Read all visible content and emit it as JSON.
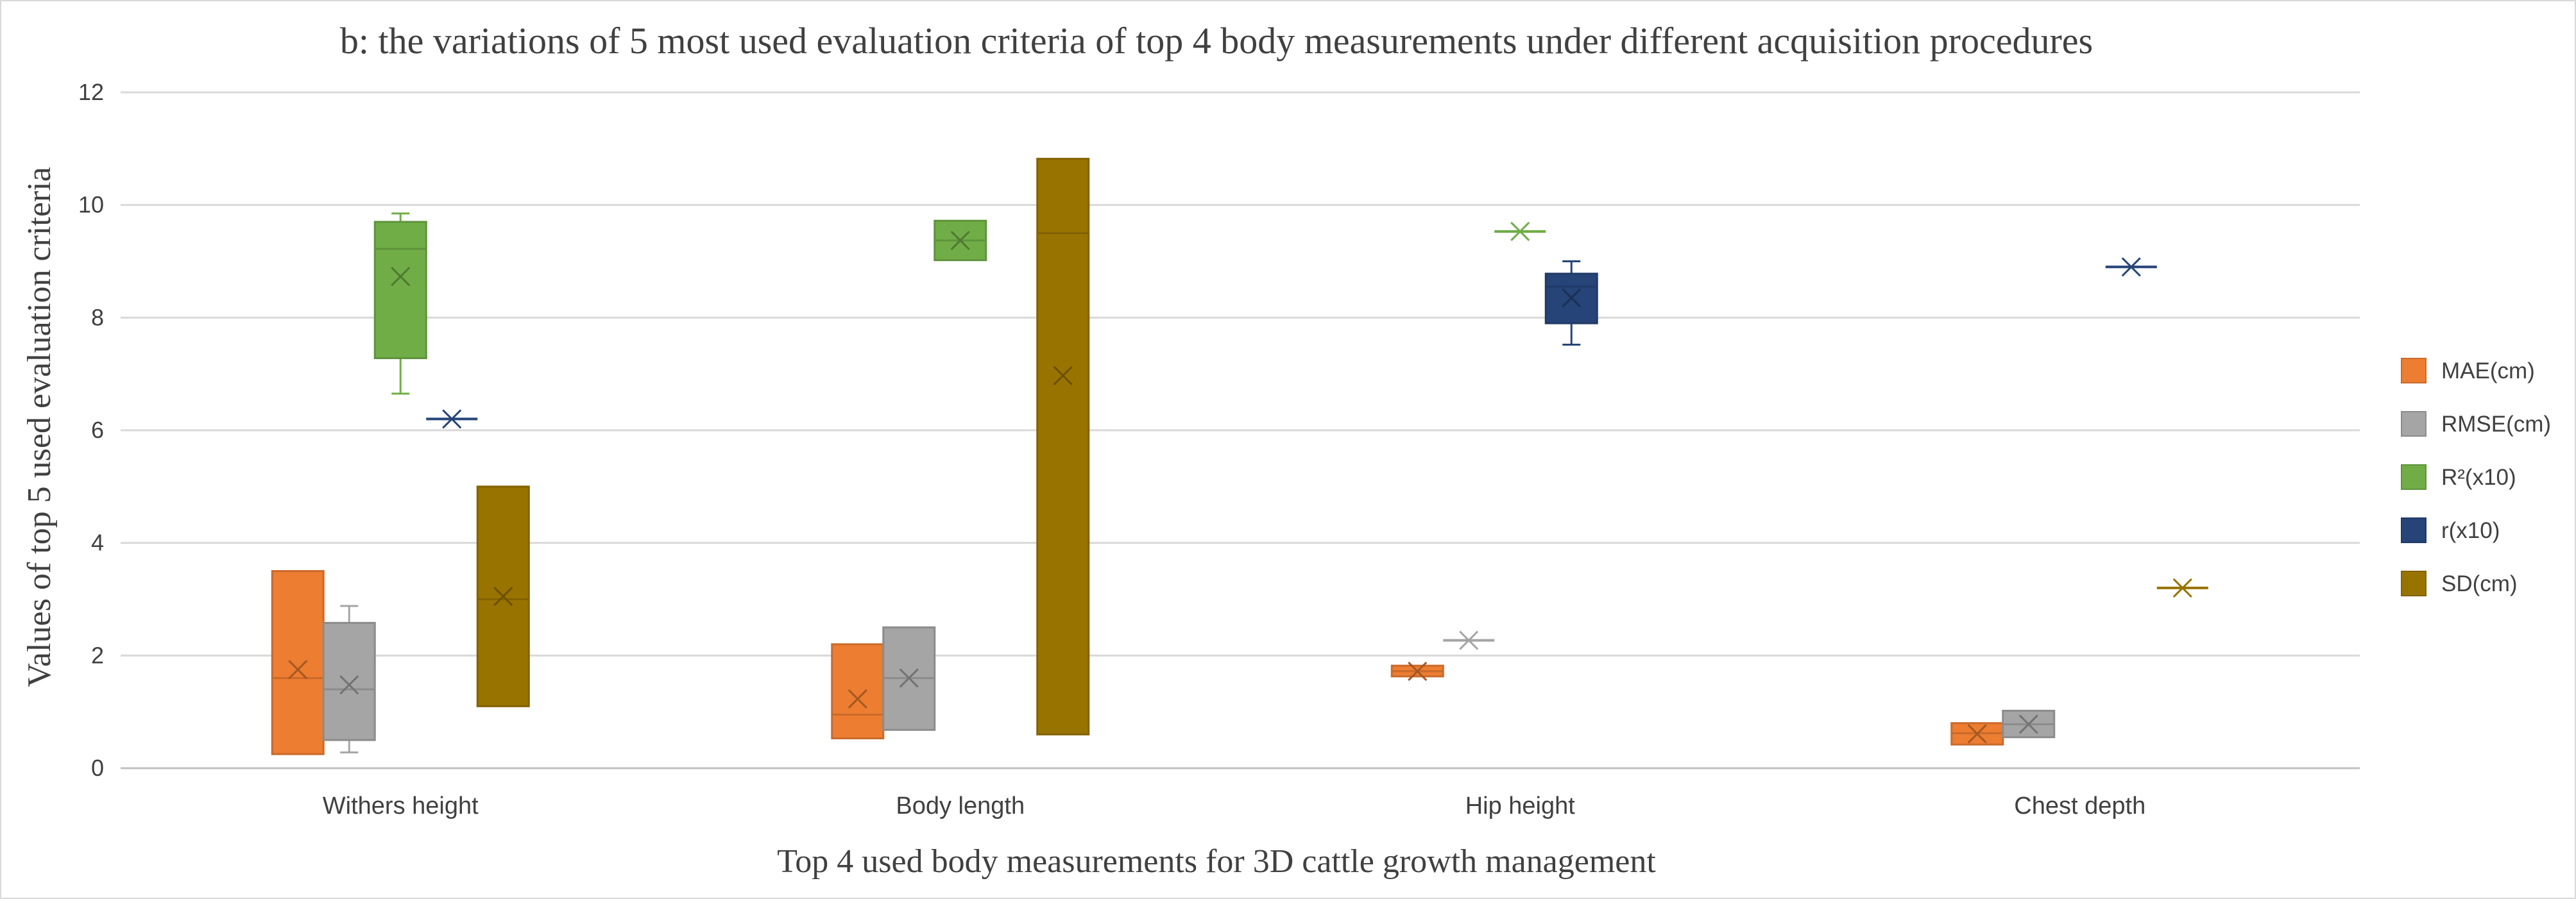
{
  "chart_data": {
    "type": "box",
    "title": "b: the variations of 5 most used evaluation criteria  of top 4 body measurements under different acquisition procedures",
    "xlabel": "Top 4 used body measurements for 3D cattle growth management",
    "ylabel": "Values of top 5 used evaluation criteria",
    "ylim": [
      0,
      12
    ],
    "yticks": [
      "0",
      "2",
      "4",
      "6",
      "8",
      "10",
      "12"
    ],
    "grid": true,
    "legend_position": "right",
    "categories": [
      "Withers height",
      "Body length",
      "Hip height",
      "Chest depth"
    ],
    "series": [
      {
        "name": "MAE(cm)",
        "color": "#ed7d31",
        "boxes": [
          {
            "category": "Withers height",
            "min": 0.25,
            "q1": 0.25,
            "median": 1.6,
            "q3": 3.5,
            "max": 3.5,
            "mean": 1.75
          },
          {
            "category": "Body length",
            "min": 0.53,
            "q1": 0.53,
            "median": 0.95,
            "q3": 2.2,
            "max": 2.2,
            "mean": 1.23
          },
          {
            "category": "Hip height",
            "min": 1.63,
            "q1": 1.63,
            "median": 1.72,
            "q3": 1.82,
            "max": 1.82,
            "mean": 1.72
          },
          {
            "category": "Chest depth",
            "min": 0.42,
            "q1": 0.42,
            "median": 0.62,
            "q3": 0.8,
            "max": 0.8,
            "mean": 0.61
          }
        ]
      },
      {
        "name": "RMSE(cm)",
        "color": "#a5a5a5",
        "boxes": [
          {
            "category": "Withers height",
            "min": 0.28,
            "q1": 0.5,
            "median": 1.4,
            "q3": 2.58,
            "max": 2.88,
            "mean": 1.48
          },
          {
            "category": "Body length",
            "min": 0.68,
            "q1": 0.68,
            "median": 1.6,
            "q3": 2.5,
            "max": 2.5,
            "mean": 1.6
          },
          {
            "category": "Hip height",
            "min": 2.27,
            "q1": 2.27,
            "median": 2.27,
            "q3": 2.27,
            "max": 2.27,
            "mean": 2.27
          },
          {
            "category": "Chest depth",
            "min": 0.55,
            "q1": 0.55,
            "median": 0.78,
            "q3": 1.02,
            "max": 1.02,
            "mean": 0.78
          }
        ]
      },
      {
        "name": "R²(x10)",
        "color": "#70ad47",
        "boxes": [
          {
            "category": "Withers height",
            "min": 6.65,
            "q1": 7.28,
            "median": 9.22,
            "q3": 9.7,
            "max": 9.85,
            "mean": 8.73
          },
          {
            "category": "Body length",
            "min": 9.02,
            "q1": 9.02,
            "median": 9.37,
            "q3": 9.72,
            "max": 9.72,
            "mean": 9.37
          },
          {
            "category": "Hip height",
            "min": 9.53,
            "q1": 9.53,
            "median": 9.53,
            "q3": 9.53,
            "max": 9.53,
            "mean": 9.53
          }
        ]
      },
      {
        "name": "r(x10)",
        "color": "#264478",
        "boxes": [
          {
            "category": "Withers height",
            "min": 6.2,
            "q1": 6.2,
            "median": 6.2,
            "q3": 6.2,
            "max": 6.2,
            "mean": 6.2
          },
          {
            "category": "Hip height",
            "min": 7.52,
            "q1": 7.9,
            "median": 8.55,
            "q3": 8.78,
            "max": 9.0,
            "mean": 8.35
          },
          {
            "category": "Chest depth",
            "min": 8.9,
            "q1": 8.9,
            "median": 8.9,
            "q3": 8.9,
            "max": 8.9,
            "mean": 8.9
          }
        ]
      },
      {
        "name": "SD(cm)",
        "color": "#997300",
        "boxes": [
          {
            "category": "Withers height",
            "min": 1.1,
            "q1": 1.1,
            "median": 3.0,
            "q3": 5.0,
            "max": 5.0,
            "mean": 3.05
          },
          {
            "category": "Body length",
            "min": 0.6,
            "q1": 0.6,
            "median": 9.5,
            "q3": 10.82,
            "max": 10.82,
            "mean": 6.97
          },
          {
            "category": "Chest depth",
            "min": 3.2,
            "q1": 3.2,
            "median": 3.2,
            "q3": 3.2,
            "max": 3.2,
            "mean": 3.2
          }
        ]
      }
    ]
  }
}
